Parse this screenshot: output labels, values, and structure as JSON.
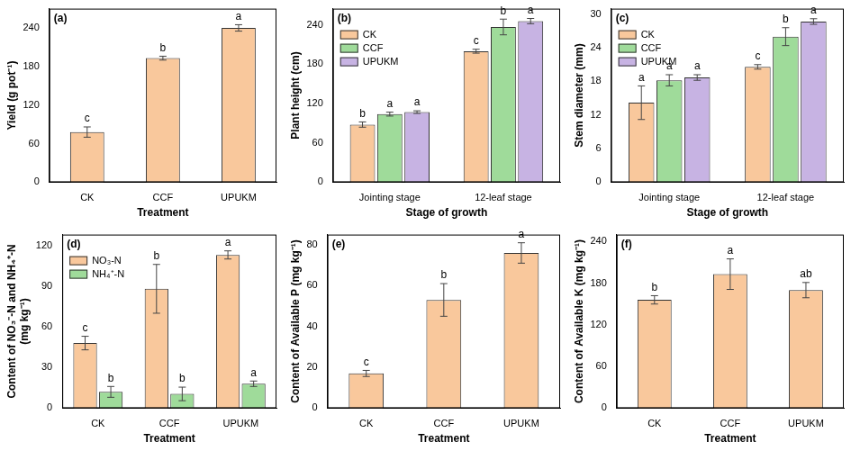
{
  "chart_data": [
    {
      "type": "bar",
      "panel": "(a)",
      "y_label": "Yield (g pot⁻¹)",
      "x_label": "Treatment",
      "categories": [
        "CK",
        "CCF",
        "UPUKM"
      ],
      "series": [
        {
          "color": "#f9c89c",
          "values": [
            78,
            193,
            240
          ],
          "errors": [
            8,
            3,
            5
          ],
          "letters": [
            "c",
            "b",
            "a"
          ]
        }
      ],
      "ylim": [
        0,
        270
      ],
      "yticks": [
        0,
        60,
        120,
        180,
        240
      ]
    },
    {
      "type": "bar",
      "panel": "(b)",
      "y_label": "Plant height (cm)",
      "x_label": "Stage of growth",
      "categories": [
        "Jointing stage",
        "12-leaf stage"
      ],
      "series": [
        {
          "name": "CK",
          "color": "#f9c89c",
          "values": [
            88,
            200
          ],
          "errors": [
            4,
            3
          ],
          "letters": [
            "b",
            "c"
          ]
        },
        {
          "name": "CCF",
          "color": "#9fdb9a",
          "values": [
            104,
            237
          ],
          "errors": [
            3,
            12
          ],
          "letters": [
            "a",
            "b"
          ]
        },
        {
          "name": "UPUKM",
          "color": "#c7b3e3",
          "values": [
            107,
            246
          ],
          "errors": [
            2,
            4
          ],
          "letters": [
            "a",
            "a"
          ]
        }
      ],
      "ylim": [
        0,
        265
      ],
      "yticks": [
        0,
        60,
        120,
        180,
        240
      ],
      "legend": "top-left"
    },
    {
      "type": "bar",
      "panel": "(c)",
      "y_label": "Stem diameter (mm)",
      "x_label": "Stage of growth",
      "categories": [
        "Jointing stage",
        "12-leaf stage"
      ],
      "series": [
        {
          "name": "CK",
          "color": "#f9c89c",
          "values": [
            14.2,
            20.6
          ],
          "errors": [
            3,
            0.4
          ],
          "letters": [
            "a",
            "c"
          ]
        },
        {
          "name": "CCF",
          "color": "#9fdb9a",
          "values": [
            18.2,
            26
          ],
          "errors": [
            1,
            1.6
          ],
          "letters": [
            "a",
            "b"
          ]
        },
        {
          "name": "UPUKM",
          "color": "#c7b3e3",
          "values": [
            18.7,
            28.7
          ],
          "errors": [
            0.5,
            0.5
          ],
          "letters": [
            "a",
            "a"
          ]
        }
      ],
      "ylim": [
        0,
        31
      ],
      "yticks": [
        0,
        6,
        12,
        18,
        24,
        30
      ],
      "legend": "top-left"
    },
    {
      "type": "bar",
      "panel": "(d)",
      "y_label": [
        "Content of NO₃⁻-N and NH₄⁺-N",
        "(mg kg⁻¹)"
      ],
      "x_label": "Treatment",
      "categories": [
        "CK",
        "CCF",
        "UPUKM"
      ],
      "series": [
        {
          "name": "NO₃-N",
          "color": "#f9c89c",
          "values": [
            48,
            88,
            113
          ],
          "errors": [
            5,
            18,
            3
          ],
          "letters": [
            "c",
            "b",
            "a"
          ]
        },
        {
          "name": "NH₄⁺-N",
          "color": "#9fdb9a",
          "values": [
            12,
            10.5,
            18
          ],
          "errors": [
            4,
            5,
            2
          ],
          "letters": [
            "b",
            "b",
            "a"
          ]
        }
      ],
      "ylim": [
        0,
        128
      ],
      "yticks": [
        0,
        30,
        60,
        90,
        120
      ],
      "legend": "top-left"
    },
    {
      "type": "bar",
      "panel": "(e)",
      "y_label": "Content of Available P (mg kg⁻¹)",
      "x_label": "Treatment",
      "categories": [
        "CK",
        "CCF",
        "UPUKM"
      ],
      "series": [
        {
          "color": "#f9c89c",
          "values": [
            17,
            53,
            76
          ],
          "errors": [
            1.5,
            8,
            5
          ],
          "letters": [
            "c",
            "b",
            "a"
          ]
        }
      ],
      "ylim": [
        0,
        85
      ],
      "yticks": [
        0,
        20,
        40,
        60,
        80
      ]
    },
    {
      "type": "bar",
      "panel": "(f)",
      "y_label": "Content of Available K (mg kg⁻¹)",
      "x_label": "Treatment",
      "categories": [
        "CK",
        "CCF",
        "UPUKM"
      ],
      "series": [
        {
          "color": "#f9c89c",
          "values": [
            156,
            193,
            170
          ],
          "errors": [
            6,
            22,
            11
          ],
          "letters": [
            "b",
            "a",
            "ab"
          ]
        }
      ],
      "ylim": [
        0,
        250
      ],
      "yticks": [
        0,
        60,
        120,
        180,
        240
      ]
    }
  ]
}
